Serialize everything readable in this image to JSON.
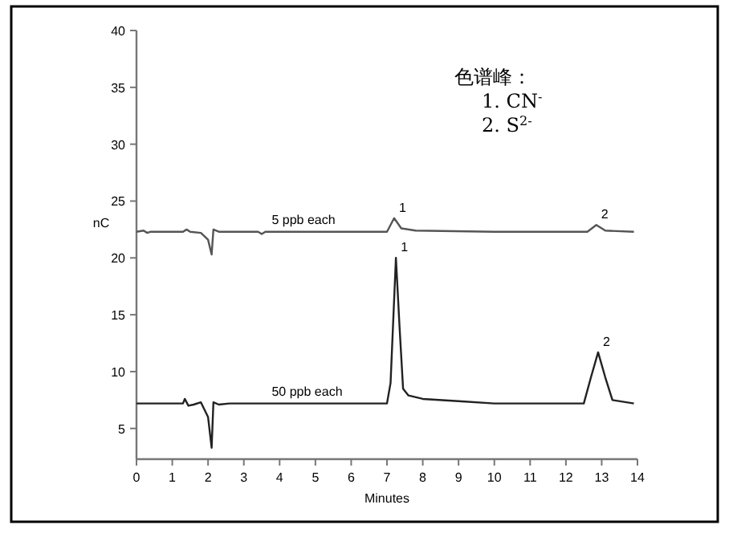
{
  "chart_data": {
    "type": "line",
    "xlabel": "Minutes",
    "ylabel": "nC",
    "xlim": [
      0,
      14
    ],
    "ylim": [
      2.3,
      40
    ],
    "xticks": [
      0,
      1,
      2,
      3,
      4,
      5,
      6,
      7,
      8,
      9,
      10,
      11,
      12,
      13,
      14
    ],
    "yticks": [
      5,
      10,
      15,
      20,
      25,
      30,
      35,
      40
    ],
    "grid": false,
    "marker": "none",
    "line_style": "solid",
    "series": [
      {
        "name": "5 ppb each",
        "color": "#555555",
        "x": [
          0,
          0.2,
          0.3,
          0.4,
          1.3,
          1.4,
          1.5,
          1.8,
          2.0,
          2.1,
          2.15,
          2.3,
          3.4,
          3.5,
          3.6,
          7.0,
          7.2,
          7.4,
          7.8,
          10,
          12.6,
          12.85,
          13.1,
          13.9
        ],
        "values": [
          22.3,
          22.4,
          22.2,
          22.3,
          22.3,
          22.5,
          22.3,
          22.2,
          21.6,
          20.3,
          22.5,
          22.3,
          22.3,
          22.1,
          22.3,
          22.3,
          23.5,
          22.6,
          22.4,
          22.3,
          22.3,
          22.9,
          22.4,
          22.3
        ]
      },
      {
        "name": "50 ppb each",
        "color": "#222222",
        "x": [
          0,
          1.3,
          1.35,
          1.45,
          1.6,
          1.8,
          2.0,
          2.1,
          2.15,
          2.3,
          2.6,
          7.0,
          7.1,
          7.25,
          7.35,
          7.45,
          7.6,
          8,
          9,
          10,
          12.5,
          12.7,
          12.9,
          13.1,
          13.3,
          13.9
        ],
        "values": [
          7.2,
          7.2,
          7.6,
          7.0,
          7.1,
          7.3,
          6.0,
          3.3,
          7.3,
          7.1,
          7.2,
          7.2,
          9,
          20.0,
          14,
          8.5,
          7.9,
          7.6,
          7.4,
          7.2,
          7.2,
          9.5,
          11.7,
          9.5,
          7.5,
          7.2
        ]
      }
    ],
    "annotations": [
      {
        "text": "1",
        "x": 7.2,
        "y": 23.5
      },
      {
        "text": "2",
        "x": 12.85,
        "y": 22.9
      },
      {
        "text": "1",
        "x": 7.25,
        "y": 20.0
      },
      {
        "text": "2",
        "x": 12.9,
        "y": 11.7
      },
      "色谱峰：",
      "1. CN$^{-}$",
      "2. S$^{2-}$"
    ]
  }
}
